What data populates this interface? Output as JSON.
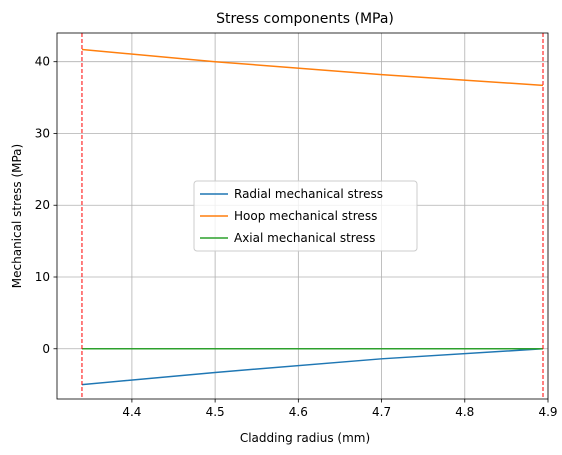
{
  "chart_data": {
    "type": "line",
    "title": "Stress components (MPa)",
    "xlabel": "Cladding radius (mm)",
    "ylabel": "Mechanical stress (MPa)",
    "xlim": [
      4.31,
      4.9
    ],
    "ylim": [
      -7,
      44
    ],
    "xticks": [
      4.4,
      4.5,
      4.6,
      4.7,
      4.8,
      4.9
    ],
    "xtick_labels": [
      "4.4",
      "4.5",
      "4.6",
      "4.7",
      "4.8",
      "4.9"
    ],
    "yticks": [
      0,
      10,
      20,
      30,
      40
    ],
    "ytick_labels": [
      "0",
      "10",
      "20",
      "30",
      "40"
    ],
    "grid": true,
    "legend_position": "center",
    "series": [
      {
        "name": "Radial mechanical stress",
        "color": "#1f77b4",
        "x": [
          4.34,
          4.5,
          4.7,
          4.894
        ],
        "y": [
          -5.0,
          -3.3,
          -1.4,
          0.0
        ]
      },
      {
        "name": "Hoop mechanical stress",
        "color": "#ff7f0e",
        "x": [
          4.34,
          4.5,
          4.7,
          4.894
        ],
        "y": [
          41.7,
          40.0,
          38.2,
          36.7
        ]
      },
      {
        "name": "Axial mechanical stress",
        "color": "#2ca02c",
        "x": [
          4.34,
          4.894
        ],
        "y": [
          0.0,
          0.0
        ]
      }
    ],
    "vlines": [
      {
        "x": 4.34,
        "color": "#ff0000",
        "style": "dashed"
      },
      {
        "x": 4.894,
        "color": "#ff0000",
        "style": "dashed"
      }
    ]
  }
}
